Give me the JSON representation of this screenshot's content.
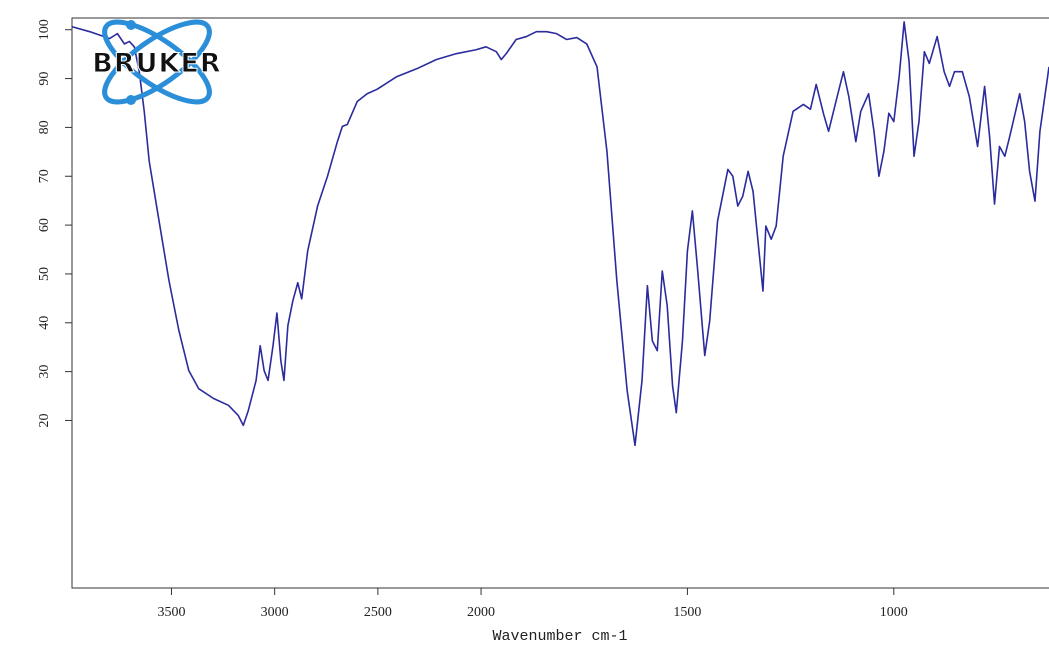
{
  "chart_data": {
    "type": "line",
    "logo": "BRUKER",
    "xlabel": "Wavenumber cm-1",
    "xlim": [
      3982,
      624
    ],
    "x_scale_break": 2000,
    "x_scale_ratio": 2,
    "ylim": [
      -14.3,
      102.4
    ],
    "xticks": [
      3500,
      3000,
      2500,
      2000,
      1500,
      1000
    ],
    "yticks": [
      20,
      30,
      40,
      50,
      60,
      70,
      80,
      90,
      100
    ],
    "color": "#2b2b9e",
    "x": [
      3982,
      3896,
      3800,
      3762,
      3728,
      3704,
      3680,
      3656,
      3632,
      3608,
      3560,
      3512,
      3464,
      3416,
      3368,
      3296,
      3224,
      3176,
      3152,
      3128,
      3090,
      3070,
      3051,
      3032,
      3008,
      2989,
      2970,
      2955,
      2936,
      2912,
      2888,
      2869,
      2840,
      2792,
      2744,
      2696,
      2672,
      2648,
      2600,
      2552,
      2504,
      2408,
      2312,
      2216,
      2120,
      2024,
      1988,
      1963,
      1951,
      1939,
      1915,
      1890,
      1866,
      1841,
      1817,
      1793,
      1768,
      1744,
      1719,
      1695,
      1671,
      1646,
      1627,
      1610,
      1597,
      1585,
      1573,
      1561,
      1549,
      1536,
      1527,
      1512,
      1500,
      1488,
      1475,
      1458,
      1446,
      1427,
      1402,
      1390,
      1378,
      1366,
      1353,
      1341,
      1329,
      1317,
      1310,
      1297,
      1285,
      1268,
      1244,
      1219,
      1202,
      1188,
      1170,
      1158,
      1139,
      1122,
      1109,
      1092,
      1080,
      1061,
      1048,
      1036,
      1024,
      1012,
      1000,
      987,
      975,
      963,
      951,
      939,
      926,
      914,
      895,
      878,
      865,
      853,
      834,
      817,
      797,
      780,
      768,
      756,
      744,
      731,
      719,
      695,
      683,
      671,
      658,
      646,
      624
    ],
    "values": [
      100.6,
      99.6,
      98.2,
      99.2,
      97.1,
      97.6,
      96.5,
      91.4,
      83.3,
      73.1,
      60.8,
      48.6,
      38.4,
      30.2,
      26.5,
      24.5,
      23.1,
      21.0,
      19.0,
      22.0,
      28.2,
      35.3,
      30.2,
      28.2,
      35.3,
      42.0,
      32.2,
      28.2,
      39.4,
      44.5,
      48.2,
      44.9,
      54.7,
      63.9,
      70.0,
      77.1,
      80.2,
      80.6,
      85.3,
      86.9,
      87.8,
      90.4,
      92.0,
      93.9,
      95.1,
      95.9,
      96.5,
      95.5,
      93.9,
      95.1,
      98.0,
      98.6,
      99.6,
      99.6,
      99.2,
      98.0,
      98.4,
      97.1,
      92.4,
      75.1,
      48.6,
      26.1,
      14.9,
      28.2,
      47.6,
      36.3,
      34.3,
      50.6,
      43.5,
      27.1,
      21.6,
      36.3,
      54.7,
      62.9,
      50.6,
      33.3,
      40.4,
      60.8,
      71.4,
      70.0,
      63.9,
      65.9,
      71.0,
      66.9,
      56.7,
      46.5,
      59.8,
      57.1,
      59.8,
      74.1,
      83.3,
      84.7,
      83.7,
      88.8,
      82.7,
      79.2,
      85.7,
      91.4,
      86.3,
      77.1,
      83.3,
      86.9,
      79.2,
      70.0,
      75.1,
      82.9,
      81.2,
      90.4,
      101.6,
      93.5,
      74.1,
      81.2,
      95.5,
      93.1,
      98.6,
      91.4,
      88.4,
      91.4,
      91.4,
      86.3,
      76.1,
      88.4,
      78.2,
      64.3,
      76.1,
      74.1,
      78.2,
      86.9,
      81.2,
      71.0,
      64.9,
      79.2,
      92.4
    ]
  }
}
